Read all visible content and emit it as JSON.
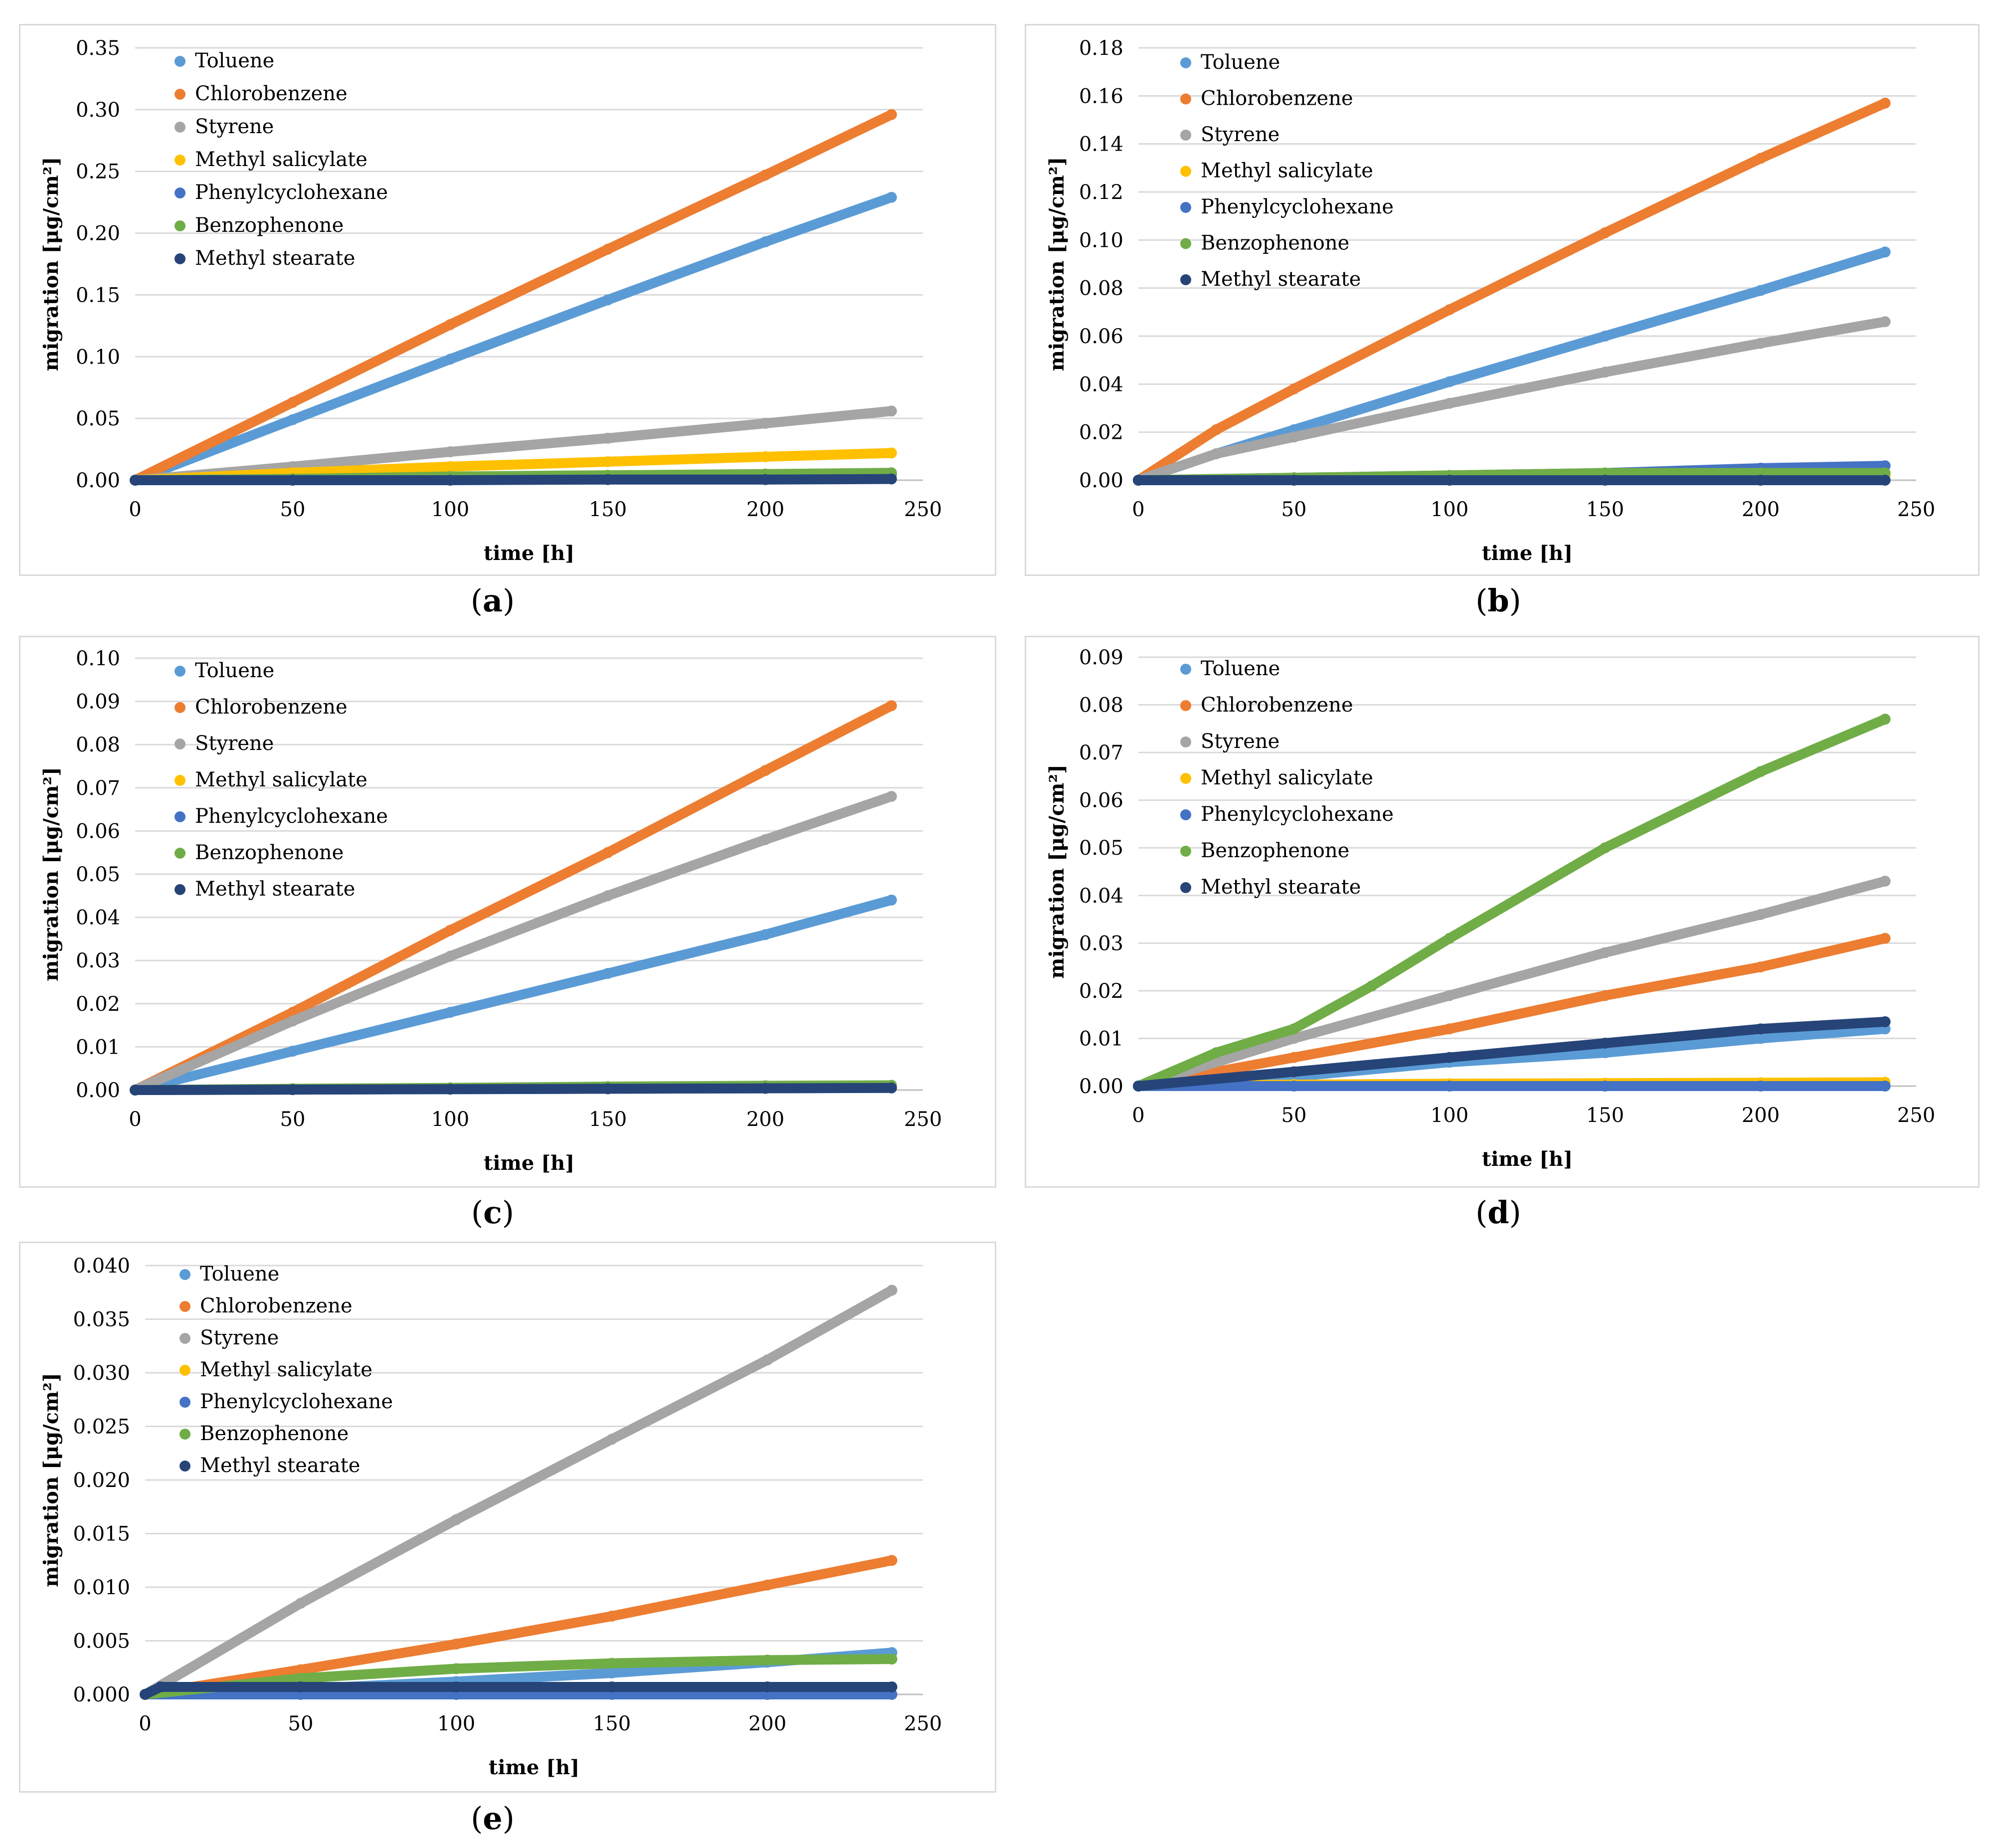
{
  "colors": {
    "Toluene": "#5b9bd5",
    "Chlorobenzene": "#ed7d31",
    "Styrene": "#a5a5a5",
    "Methyl salicylate": "#ffc000",
    "Phenylcyclohexane": "#4472c4",
    "Benzophenone": "#70ad47",
    "Methyl stearate": "#264478",
    "gridline": "#d9d9d9",
    "axis": "#bfbfbf"
  },
  "panel_labels": [
    {
      "open": "(",
      "letter": "a",
      "close": ")"
    },
    {
      "open": "(",
      "letter": "b",
      "close": ")"
    },
    {
      "open": "(",
      "letter": "c",
      "close": ")"
    },
    {
      "open": "(",
      "letter": "d",
      "close": ")"
    },
    {
      "open": "(",
      "letter": "e",
      "close": ")"
    }
  ],
  "chart_data": [
    {
      "type": "scatter",
      "panel": "a",
      "xlabel": "time [h]",
      "ylabel": "migration [μg/cm²]",
      "xlim": [
        0,
        250
      ],
      "ylim": [
        0,
        0.35
      ],
      "xticks": [
        "0",
        "50",
        "100",
        "150",
        "200",
        "250"
      ],
      "yticks": [
        "0.00",
        "0.05",
        "0.10",
        "0.15",
        "0.20",
        "0.25",
        "0.30",
        "0.35"
      ],
      "legend": [
        "Toluene",
        "Chlorobenzene",
        "Styrene",
        "Methyl salicylate",
        "Phenylcyclohexane",
        "Benzophenone",
        "Methyl stearate"
      ],
      "series": [
        {
          "name": "Toluene",
          "x": [
            0,
            50,
            100,
            150,
            200,
            240
          ],
          "y": [
            0,
            0.049,
            0.098,
            0.146,
            0.193,
            0.229
          ]
        },
        {
          "name": "Chlorobenzene",
          "x": [
            0,
            50,
            100,
            150,
            200,
            240
          ],
          "y": [
            0,
            0.063,
            0.126,
            0.187,
            0.247,
            0.296
          ]
        },
        {
          "name": "Styrene",
          "x": [
            0,
            50,
            100,
            150,
            200,
            240
          ],
          "y": [
            0,
            0.011,
            0.023,
            0.034,
            0.046,
            0.056
          ]
        },
        {
          "name": "Methyl salicylate",
          "x": [
            0,
            50,
            100,
            150,
            200,
            240
          ],
          "y": [
            0,
            0.006,
            0.011,
            0.015,
            0.019,
            0.022
          ]
        },
        {
          "name": "Phenylcyclohexane",
          "x": [
            0,
            50,
            100,
            150,
            200,
            240
          ],
          "y": [
            0,
            0.001,
            0.002,
            0.003,
            0.004,
            0.005
          ]
        },
        {
          "name": "Benzophenone",
          "x": [
            0,
            50,
            100,
            150,
            200,
            240
          ],
          "y": [
            0,
            0.001,
            0.003,
            0.004,
            0.005,
            0.006
          ]
        },
        {
          "name": "Methyl stearate",
          "x": [
            0,
            50,
            100,
            150,
            200,
            240
          ],
          "y": [
            0,
            0,
            0,
            0.0005,
            0.0005,
            0.001
          ]
        }
      ]
    },
    {
      "type": "scatter",
      "panel": "b",
      "xlabel": "time [h]",
      "ylabel": "migration [μg/cm²]",
      "xlim": [
        0,
        250
      ],
      "ylim": [
        0,
        0.18
      ],
      "xticks": [
        "0",
        "50",
        "100",
        "150",
        "200",
        "250"
      ],
      "yticks": [
        "0.00",
        "0.02",
        "0.04",
        "0.06",
        "0.08",
        "0.10",
        "0.12",
        "0.14",
        "0.16",
        "0.18"
      ],
      "legend": [
        "Toluene",
        "Chlorobenzene",
        "Styrene",
        "Methyl salicylate",
        "Phenylcyclohexane",
        "Benzophenone",
        "Methyl stearate"
      ],
      "series": [
        {
          "name": "Toluene",
          "x": [
            0,
            25,
            50,
            100,
            150,
            200,
            240
          ],
          "y": [
            0,
            0.011,
            0.021,
            0.041,
            0.06,
            0.079,
            0.095
          ]
        },
        {
          "name": "Chlorobenzene",
          "x": [
            0,
            25,
            50,
            100,
            150,
            200,
            240
          ],
          "y": [
            0,
            0.021,
            0.038,
            0.071,
            0.103,
            0.134,
            0.157
          ]
        },
        {
          "name": "Styrene",
          "x": [
            0,
            25,
            50,
            100,
            150,
            200,
            240
          ],
          "y": [
            0,
            0.011,
            0.018,
            0.032,
            0.045,
            0.057,
            0.066
          ]
        },
        {
          "name": "Methyl salicylate",
          "x": [
            0,
            50,
            100,
            150,
            200,
            240
          ],
          "y": [
            0,
            0.001,
            0.001,
            0.002,
            0.002,
            0.002
          ]
        },
        {
          "name": "Phenylcyclohexane",
          "x": [
            0,
            50,
            100,
            150,
            200,
            240
          ],
          "y": [
            0,
            0.001,
            0.002,
            0.003,
            0.005,
            0.006
          ]
        },
        {
          "name": "Benzophenone",
          "x": [
            0,
            50,
            100,
            150,
            200,
            240
          ],
          "y": [
            0,
            0.001,
            0.002,
            0.003,
            0.003,
            0.003
          ]
        },
        {
          "name": "Methyl stearate",
          "x": [
            0,
            50,
            100,
            150,
            200,
            240
          ],
          "y": [
            0,
            0,
            0,
            0,
            0,
            0
          ]
        }
      ]
    },
    {
      "type": "scatter",
      "panel": "c",
      "xlabel": "time [h]",
      "ylabel": "migration [μg/cm²]",
      "xlim": [
        0,
        250
      ],
      "ylim": [
        0,
        0.1
      ],
      "xticks": [
        "0",
        "50",
        "100",
        "150",
        "200",
        "250"
      ],
      "yticks": [
        "0.00",
        "0.01",
        "0.02",
        "0.03",
        "0.04",
        "0.05",
        "0.06",
        "0.07",
        "0.08",
        "0.09",
        "0.10"
      ],
      "legend": [
        "Toluene",
        "Chlorobenzene",
        "Styrene",
        "Methyl salicylate",
        "Phenylcyclohexane",
        "Benzophenone",
        "Methyl stearate"
      ],
      "series": [
        {
          "name": "Toluene",
          "x": [
            0,
            50,
            100,
            150,
            200,
            240
          ],
          "y": [
            0,
            0.009,
            0.018,
            0.027,
            0.036,
            0.044
          ]
        },
        {
          "name": "Chlorobenzene",
          "x": [
            0,
            50,
            100,
            150,
            200,
            240
          ],
          "y": [
            0,
            0.018,
            0.037,
            0.055,
            0.074,
            0.089
          ]
        },
        {
          "name": "Styrene",
          "x": [
            0,
            50,
            100,
            150,
            200,
            240
          ],
          "y": [
            0,
            0.016,
            0.031,
            0.045,
            0.058,
            0.068
          ]
        },
        {
          "name": "Methyl salicylate",
          "x": [
            0,
            50,
            100,
            150,
            200,
            240
          ],
          "y": [
            0,
            0.0002,
            0.0004,
            0.0005,
            0.0006,
            0.0007
          ]
        },
        {
          "name": "Phenylcyclohexane",
          "x": [
            0,
            50,
            100,
            150,
            200,
            240
          ],
          "y": [
            0,
            0.0001,
            0.0002,
            0.0003,
            0.0004,
            0.0005
          ]
        },
        {
          "name": "Benzophenone",
          "x": [
            0,
            50,
            100,
            150,
            200,
            240
          ],
          "y": [
            0,
            0.0003,
            0.0005,
            0.0008,
            0.001,
            0.0011
          ]
        },
        {
          "name": "Methyl stearate",
          "x": [
            0,
            50,
            100,
            150,
            200,
            240
          ],
          "y": [
            0,
            0.0001,
            0.0002,
            0.0003,
            0.0004,
            0.0005
          ]
        }
      ]
    },
    {
      "type": "scatter",
      "panel": "d",
      "xlabel": "time [h]",
      "ylabel": "migration [μg/cm²]",
      "xlim": [
        0,
        250
      ],
      "ylim": [
        0,
        0.09
      ],
      "xticks": [
        "0",
        "50",
        "100",
        "150",
        "200",
        "250"
      ],
      "yticks": [
        "0.00",
        "0.01",
        "0.02",
        "0.03",
        "0.04",
        "0.05",
        "0.06",
        "0.07",
        "0.08",
        "0.09"
      ],
      "legend": [
        "Toluene",
        "Chlorobenzene",
        "Styrene",
        "Methyl salicylate",
        "Phenylcyclohexane",
        "Benzophenone",
        "Methyl stearate"
      ],
      "series": [
        {
          "name": "Toluene",
          "x": [
            0,
            50,
            100,
            150,
            200,
            240
          ],
          "y": [
            0,
            0.002,
            0.005,
            0.007,
            0.01,
            0.012
          ]
        },
        {
          "name": "Chlorobenzene",
          "x": [
            0,
            50,
            100,
            150,
            200,
            240
          ],
          "y": [
            0,
            0.006,
            0.012,
            0.019,
            0.025,
            0.031
          ]
        },
        {
          "name": "Styrene",
          "x": [
            0,
            50,
            100,
            150,
            200,
            240
          ],
          "y": [
            0,
            0.01,
            0.019,
            0.028,
            0.036,
            0.043
          ]
        },
        {
          "name": "Methyl salicylate",
          "x": [
            0,
            50,
            100,
            150,
            200,
            240
          ],
          "y": [
            0,
            0.0003,
            0.0005,
            0.0006,
            0.0007,
            0.0008
          ]
        },
        {
          "name": "Phenylcyclohexane",
          "x": [
            0,
            50,
            100,
            150,
            200,
            240
          ],
          "y": [
            0,
            0,
            0,
            0,
            0,
            0
          ]
        },
        {
          "name": "Benzophenone",
          "x": [
            0,
            25,
            50,
            75,
            100,
            150,
            200,
            240
          ],
          "y": [
            0,
            0.007,
            0.012,
            0.021,
            0.031,
            0.05,
            0.066,
            0.077
          ]
        },
        {
          "name": "Methyl stearate",
          "x": [
            0,
            50,
            100,
            150,
            200,
            240
          ],
          "y": [
            0,
            0.003,
            0.006,
            0.009,
            0.012,
            0.0135
          ]
        }
      ]
    },
    {
      "type": "scatter",
      "panel": "e",
      "xlabel": "time [h]",
      "ylabel": "migration [μg/cm²]",
      "xlim": [
        0,
        250
      ],
      "ylim": [
        0,
        0.04
      ],
      "xticks": [
        "0",
        "50",
        "100",
        "150",
        "200",
        "250"
      ],
      "yticks": [
        "0.000",
        "0.005",
        "0.010",
        "0.015",
        "0.020",
        "0.025",
        "0.030",
        "0.035",
        "0.040"
      ],
      "legend": [
        "Toluene",
        "Chlorobenzene",
        "Styrene",
        "Methyl salicylate",
        "Phenylcyclohexane",
        "Benzophenone",
        "Methyl stearate"
      ],
      "series": [
        {
          "name": "Toluene",
          "x": [
            0,
            50,
            100,
            150,
            200,
            240
          ],
          "y": [
            0,
            0.0005,
            0.0012,
            0.002,
            0.003,
            0.0039
          ]
        },
        {
          "name": "Chlorobenzene",
          "x": [
            0,
            50,
            100,
            150,
            200,
            240
          ],
          "y": [
            0,
            0.0023,
            0.0047,
            0.0073,
            0.0102,
            0.0125
          ]
        },
        {
          "name": "Styrene",
          "x": [
            0,
            50,
            100,
            150,
            200,
            240
          ],
          "y": [
            0,
            0.0085,
            0.0163,
            0.0238,
            0.0312,
            0.0377
          ]
        },
        {
          "name": "Methyl salicylate",
          "x": [
            0,
            50,
            100,
            150,
            200,
            240
          ],
          "y": [
            0,
            0,
            0,
            0,
            0,
            0
          ]
        },
        {
          "name": "Phenylcyclohexane",
          "x": [
            0,
            50,
            100,
            150,
            200,
            240
          ],
          "y": [
            0,
            0,
            0,
            0,
            0,
            0
          ]
        },
        {
          "name": "Benzophenone",
          "x": [
            0,
            50,
            100,
            150,
            200,
            240
          ],
          "y": [
            0,
            0.0015,
            0.0024,
            0.0029,
            0.0032,
            0.0033
          ]
        },
        {
          "name": "Methyl stearate",
          "x": [
            0,
            5,
            50,
            100,
            150,
            200,
            240
          ],
          "y": [
            0,
            0.0007,
            0.0007,
            0.0007,
            0.0007,
            0.0007,
            0.0007
          ]
        }
      ]
    }
  ]
}
